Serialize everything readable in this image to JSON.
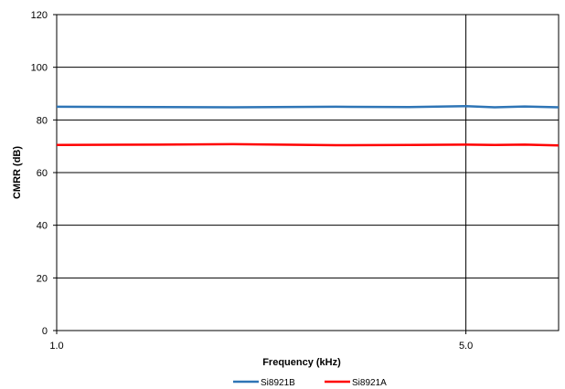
{
  "chart_data": {
    "type": "line",
    "title": "",
    "xlabel": "Frequency (kHz)",
    "ylabel": "CMRR (dB)",
    "x_scale": "log",
    "xlim": [
      1.0,
      7.2
    ],
    "ylim": [
      0,
      120
    ],
    "x_ticks": [
      1.0,
      5.0
    ],
    "x_tick_labels": [
      "1.0",
      "5.0"
    ],
    "y_ticks": [
      0,
      20,
      40,
      60,
      80,
      100,
      120
    ],
    "y_tick_labels": [
      "0",
      "20",
      "40",
      "60",
      "80",
      "100",
      "120"
    ],
    "grid": true,
    "legend_position": "bottom",
    "series": [
      {
        "name": "Si8921B",
        "color": "#2e75b6",
        "x": [
          1.0,
          1.5,
          2.0,
          3.0,
          4.0,
          5.0,
          5.6,
          6.3,
          7.2
        ],
        "values": [
          85.0,
          84.9,
          84.8,
          85.0,
          84.9,
          85.2,
          84.8,
          85.1,
          84.8
        ]
      },
      {
        "name": "Si8921A",
        "color": "#ff0000",
        "x": [
          1.0,
          1.5,
          2.0,
          3.0,
          4.0,
          5.0,
          5.6,
          6.3,
          7.2
        ],
        "values": [
          70.5,
          70.6,
          70.8,
          70.4,
          70.5,
          70.6,
          70.5,
          70.6,
          70.3
        ]
      }
    ]
  }
}
